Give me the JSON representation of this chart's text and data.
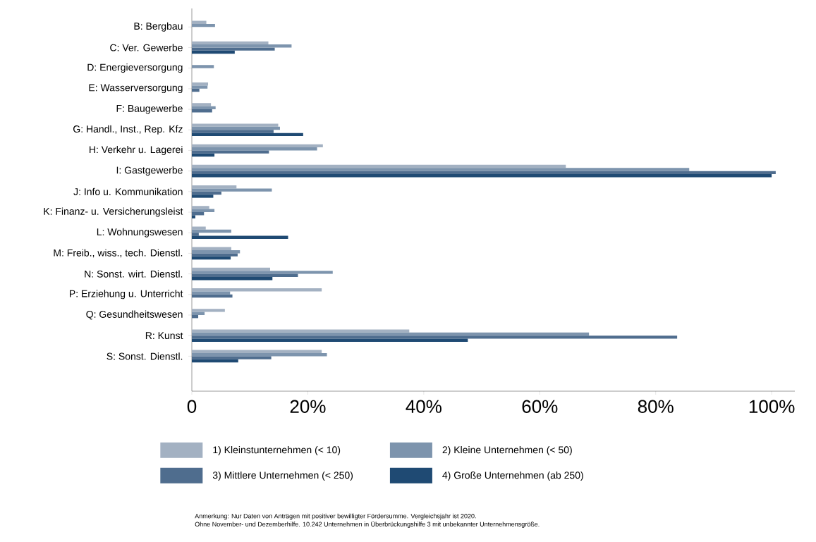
{
  "chart_data": {
    "type": "bar",
    "orientation": "horizontal",
    "categories": [
      "B: Bergbau",
      "C: Ver. Gewerbe",
      "D: Energieversorgung",
      "E: Wasserversorgung",
      "F: Baugewerbe",
      "G: Handl., Inst., Rep. Kfz",
      "H: Verkehr u. Lagerei",
      "I: Gastgewerbe",
      "J: Info u. Kommunikation",
      "K: Finanz- u. Versicherungsleist",
      "L: Wohnungswesen",
      "M: Freib., wiss., tech. Dienstl.",
      "N: Sonst. wirt. Dienstl.",
      "P: Erziehung u. Unterricht",
      "Q: Gesundheitswesen",
      "R: Kunst",
      "S: Sonst. Dienstl."
    ],
    "series": [
      {
        "name": "1) Kleinstunternehmen (< 10)",
        "color": "#a3b1c2",
        "values": [
          2.5,
          13.2,
          null,
          2.8,
          3.3,
          14.9,
          22.6,
          64.5,
          7.7,
          3.0,
          2.4,
          6.8,
          13.5,
          22.4,
          5.7,
          37.5,
          22.4
        ]
      },
      {
        "name": "2) Kleine Unternehmen (< 50)",
        "color": "#7d94ad",
        "values": [
          4.0,
          17.2,
          3.8,
          2.7,
          4.1,
          15.2,
          21.6,
          85.8,
          13.8,
          3.9,
          6.8,
          8.3,
          24.3,
          6.6,
          2.2,
          68.5,
          23.3
        ]
      },
      {
        "name": "3) Mittlere Unternehmen (< 250)",
        "color": "#4f6d8e",
        "values": [
          null,
          14.3,
          null,
          1.3,
          3.5,
          14.1,
          13.3,
          100.7,
          5.1,
          2.1,
          1.2,
          7.9,
          18.3,
          7.0,
          1.1,
          83.7,
          13.7
        ]
      },
      {
        "name": "4) Große Unternehmen (ab 250)",
        "color": "#1f4a73",
        "values": [
          null,
          7.4,
          null,
          null,
          null,
          19.2,
          3.9,
          100,
          3.7,
          0.6,
          16.6,
          6.7,
          13.9,
          null,
          null,
          47.6,
          8.0
        ]
      }
    ],
    "xlim": [
      0,
      104
    ],
    "xticks": [
      0,
      {
        "value": 20,
        "label": "20%"
      },
      {
        "value": 40,
        "label": "40%"
      },
      {
        "value": 60,
        "label": "60%"
      },
      {
        "value": 80,
        "label": "80%"
      },
      {
        "value": 100,
        "label": "100%"
      }
    ],
    "grid": false,
    "legend": "bottom",
    "annotations": [
      "Anmerkung: Nur Daten von Anträgen mit positiver bewilligter Fördersumme. Vergleichsjahr ist 2020.",
      "Ohne November- und Dezemberhilfe. 10.242 Unternehmen in Überbrückungshilfe 3 mit unbekannter Unternehmensgröße."
    ]
  }
}
